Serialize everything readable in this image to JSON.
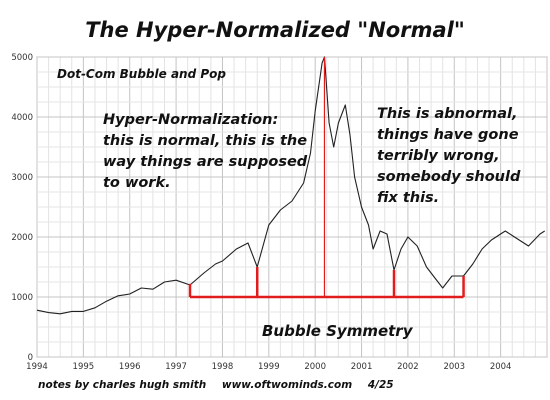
{
  "chart_data": {
    "type": "line",
    "title": "The Hyper-Normalized \"Normal\"",
    "subtitle": "Dot-Com Bubble and Pop",
    "xlabel": "",
    "ylabel": "",
    "xlim": [
      1994,
      2005
    ],
    "ylim": [
      0,
      5000
    ],
    "grid": true,
    "x_ticks": [
      "1994",
      "1995",
      "1996",
      "1997",
      "1998",
      "1999",
      "2000",
      "2001",
      "2002",
      "2003",
      "2004"
    ],
    "y_ticks": [
      "0",
      "1000",
      "2000",
      "3000",
      "4000",
      "5000"
    ],
    "series": [
      {
        "color": "#222222",
        "points": [
          [
            1994.0,
            780
          ],
          [
            1994.25,
            740
          ],
          [
            1994.5,
            720
          ],
          [
            1994.75,
            760
          ],
          [
            1995.0,
            760
          ],
          [
            1995.25,
            820
          ],
          [
            1995.5,
            930
          ],
          [
            1995.75,
            1020
          ],
          [
            1996.0,
            1050
          ],
          [
            1996.25,
            1150
          ],
          [
            1996.5,
            1130
          ],
          [
            1996.75,
            1250
          ],
          [
            1997.0,
            1280
          ],
          [
            1997.3,
            1200
          ],
          [
            1997.6,
            1400
          ],
          [
            1997.85,
            1550
          ],
          [
            1998.0,
            1600
          ],
          [
            1998.3,
            1800
          ],
          [
            1998.55,
            1900
          ],
          [
            1998.75,
            1500
          ],
          [
            1999.0,
            2200
          ],
          [
            1999.25,
            2450
          ],
          [
            1999.5,
            2600
          ],
          [
            1999.75,
            2900
          ],
          [
            1999.9,
            3400
          ],
          [
            2000.0,
            4100
          ],
          [
            2000.15,
            4900
          ],
          [
            2000.2,
            5000
          ],
          [
            2000.3,
            3900
          ],
          [
            2000.4,
            3500
          ],
          [
            2000.5,
            3900
          ],
          [
            2000.65,
            4200
          ],
          [
            2000.75,
            3700
          ],
          [
            2000.85,
            3000
          ],
          [
            2001.0,
            2500
          ],
          [
            2001.15,
            2200
          ],
          [
            2001.25,
            1800
          ],
          [
            2001.4,
            2100
          ],
          [
            2001.55,
            2050
          ],
          [
            2001.7,
            1450
          ],
          [
            2001.85,
            1800
          ],
          [
            2002.0,
            2000
          ],
          [
            2002.2,
            1850
          ],
          [
            2002.4,
            1500
          ],
          [
            2002.6,
            1300
          ],
          [
            2002.75,
            1150
          ],
          [
            2002.95,
            1350
          ],
          [
            2003.2,
            1350
          ],
          [
            2003.4,
            1550
          ],
          [
            2003.6,
            1800
          ],
          [
            2003.8,
            1950
          ],
          [
            2004.0,
            2050
          ],
          [
            2004.1,
            2100
          ],
          [
            2004.3,
            2000
          ],
          [
            2004.6,
            1850
          ],
          [
            2004.85,
            2050
          ],
          [
            2004.95,
            2100
          ]
        ]
      }
    ],
    "annotations": {
      "left": [
        "Hyper-Normalization:",
        "this is normal, this is the",
        "way things are supposed",
        "to work."
      ],
      "right": [
        "This is abnormal,",
        "things have gone",
        "terribly wrong,",
        "somebody should",
        "fix this."
      ],
      "bubble_label": "Bubble Symmetry",
      "bubble_color": "#e01c1c",
      "bubble_base_level": 1000,
      "bubble_markers": [
        {
          "x": 1997.3,
          "y": 1220
        },
        {
          "x": 1998.75,
          "y": 1500
        },
        {
          "x": 2000.2,
          "y": 5000
        },
        {
          "x": 2001.7,
          "y": 1450
        },
        {
          "x": 2003.2,
          "y": 1350
        }
      ]
    }
  },
  "footer": {
    "notes": "notes by charles hugh smith",
    "site": "www.oftwominds.com",
    "date": "4/25"
  }
}
